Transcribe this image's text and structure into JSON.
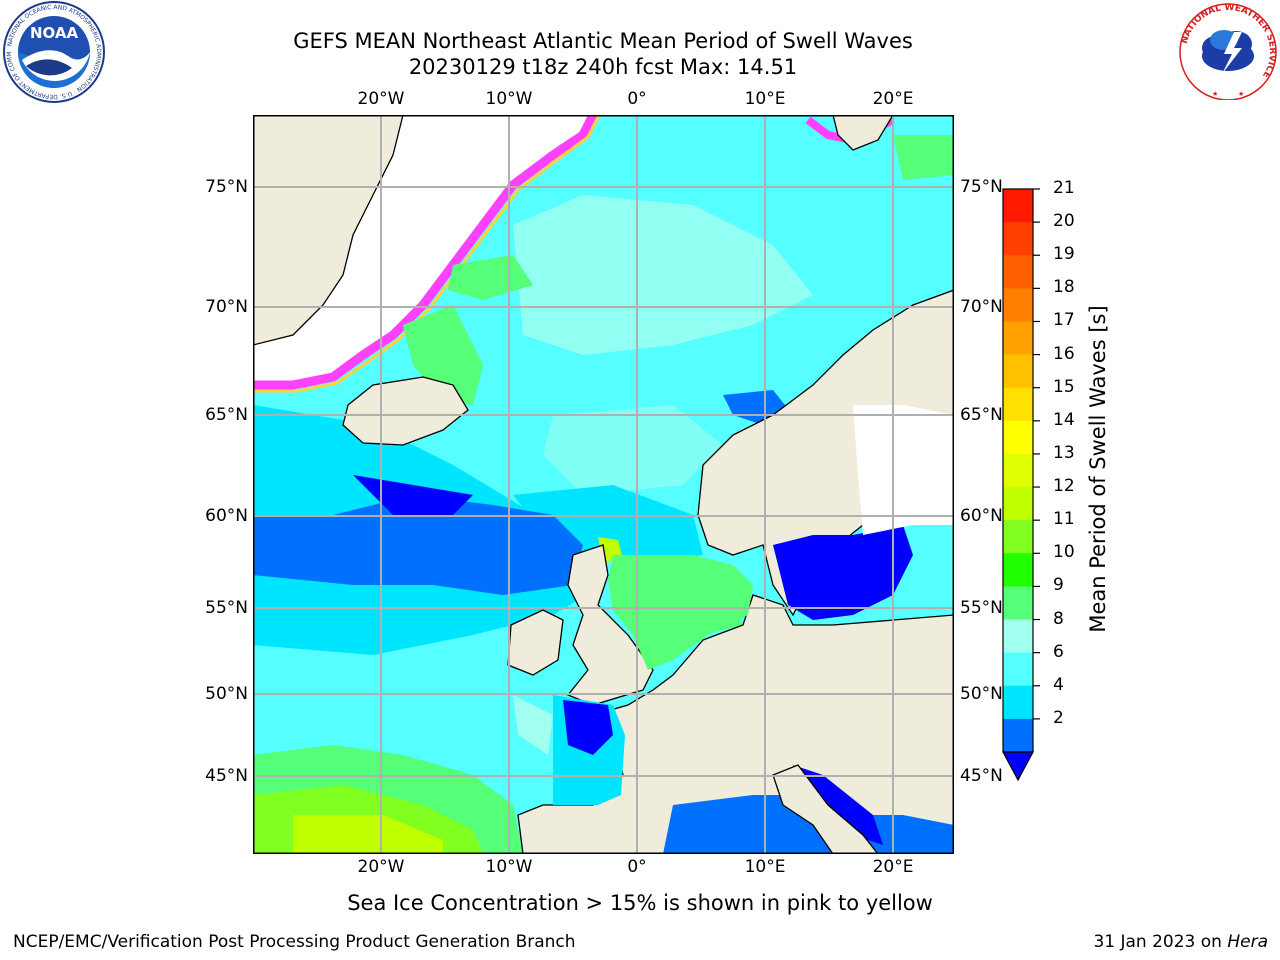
{
  "header": {
    "title_line1": "GEFS MEAN Northeast Atlantic Mean Period of Swell Waves",
    "title_line2": "20230129 t18z 240h fcst   Max: 14.51"
  },
  "logos": {
    "left": "NOAA",
    "left_ring_text": "NATIONAL OCEANIC AND ATMOSPHERIC ADMINISTRATION · U.S. DEPARTMENT OF COMMERCE",
    "right_ring_text": "NATIONAL WEATHER SERVICE"
  },
  "map": {
    "lon_labels": [
      "20°W",
      "10°W",
      "0°",
      "10°E",
      "20°E"
    ],
    "lat_labels": [
      "75°N",
      "70°N",
      "65°N",
      "60°N",
      "55°N",
      "50°N",
      "45°N"
    ],
    "colors": {
      "land": "#efecdc",
      "ice_free_white": "#ffffff",
      "grid": "#b0b0b0"
    }
  },
  "colorbar": {
    "label": "Mean Period of Swell Waves [s]",
    "ticks": [
      "21",
      "20",
      "19",
      "18",
      "17",
      "16",
      "15",
      "14",
      "13",
      "12",
      "11",
      "10",
      "9",
      "8",
      "6",
      "4",
      "2"
    ],
    "colors_top_to_bottom": [
      "#ff1a00",
      "#ff4000",
      "#ff6000",
      "#ff8000",
      "#ffa000",
      "#ffc000",
      "#ffe000",
      "#ffff00",
      "#e0ff00",
      "#c0ff00",
      "#80ff20",
      "#20ff00",
      "#55ff77",
      "#a0ffee",
      "#55ffff",
      "#00e5ff",
      "#0070ff"
    ],
    "under_color": "#0000ff"
  },
  "note": "Sea Ice Concentration > 15% is shown in pink to yellow",
  "footer": {
    "left": "NCEP/EMC/Verification Post Processing Product Generation Branch",
    "right_date": "31 Jan 2023 on ",
    "right_machine": "Hera"
  }
}
